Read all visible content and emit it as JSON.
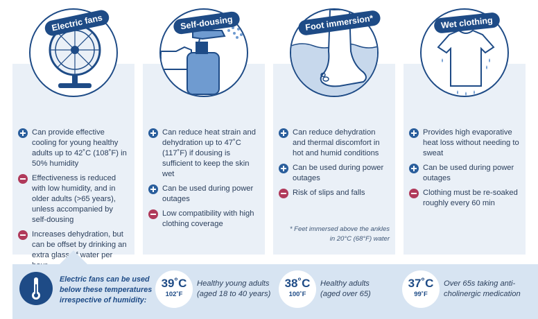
{
  "cards": [
    {
      "title": "Electric fans",
      "icon": "electric-fan-icon",
      "items": [
        {
          "type": "plus",
          "text": "Can provide effective cooling for young healthy adults up to 42˚C (108˚F) in 50% humidity"
        },
        {
          "type": "minus",
          "text": "Effectiveness is reduced with low humidity, and in older adults (>65 years), unless accompanied by self-dousing"
        },
        {
          "type": "minus",
          "text": "Increases dehydration, but can be offset by drinking an extra glass of water per hour"
        }
      ]
    },
    {
      "title": "Self-dousing",
      "icon": "spray-bottle-icon",
      "items": [
        {
          "type": "plus",
          "text": "Can reduce heat strain and dehydration up to 47˚C (117˚F) if dousing is sufficient to keep the skin wet"
        },
        {
          "type": "plus",
          "text": "Can be used during power outages"
        },
        {
          "type": "minus",
          "text": "Low compatibility with high clothing coverage"
        }
      ]
    },
    {
      "title": "Foot immersion*",
      "icon": "foot-in-water-icon",
      "items": [
        {
          "type": "plus",
          "text": "Can reduce dehydration and thermal discomfort in hot and humid conditions"
        },
        {
          "type": "plus",
          "text": "Can be used during power outages"
        },
        {
          "type": "minus",
          "text": "Risk of slips and falls"
        }
      ],
      "note": "* Feet immersed above the ankles in 20°C (68°F) water"
    },
    {
      "title": "Wet clothing",
      "icon": "wet-tshirt-icon",
      "items": [
        {
          "type": "plus",
          "text": "Provides high evaporative heat loss without needing to sweat"
        },
        {
          "type": "plus",
          "text": "Can be used during power outages"
        },
        {
          "type": "minus",
          "text": "Clothing must be re-soaked roughly every 60 min"
        }
      ]
    }
  ],
  "threshold": {
    "text": "Electric fans can be used below these temperatures irrespective of humidity:",
    "icon": "thermometer-icon",
    "temps": [
      {
        "c": "39˚C",
        "f": "102˚F",
        "desc": "Healthy young adults (aged 18 to 40 years)"
      },
      {
        "c": "38˚C",
        "f": "100˚F",
        "desc": "Healthy adults (aged over 65)"
      },
      {
        "c": "37˚C",
        "f": "99˚F",
        "desc": "Over 65s taking anti-cholinergic medication"
      }
    ]
  },
  "colors": {
    "navy": "#1e4b86",
    "card_bg": "#eaf0f7",
    "plus": "#2a5e9c",
    "minus": "#b03a5b",
    "bottom_bg": "#d7e4f2"
  }
}
